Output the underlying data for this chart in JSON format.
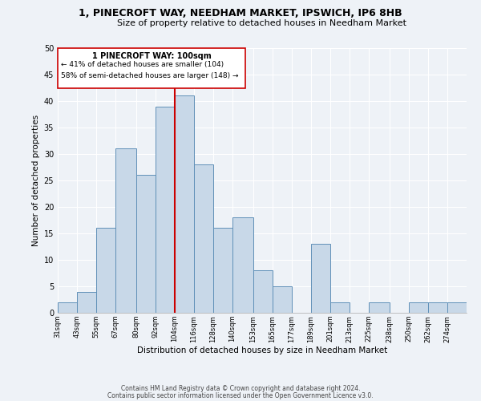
{
  "title1": "1, PINECROFT WAY, NEEDHAM MARKET, IPSWICH, IP6 8HB",
  "title2": "Size of property relative to detached houses in Needham Market",
  "xlabel": "Distribution of detached houses by size in Needham Market",
  "ylabel": "Number of detached properties",
  "bin_labels": [
    "31sqm",
    "43sqm",
    "55sqm",
    "67sqm",
    "80sqm",
    "92sqm",
    "104sqm",
    "116sqm",
    "128sqm",
    "140sqm",
    "153sqm",
    "165sqm",
    "177sqm",
    "189sqm",
    "201sqm",
    "213sqm",
    "225sqm",
    "238sqm",
    "250sqm",
    "262sqm",
    "274sqm"
  ],
  "bin_edges": [
    31,
    43,
    55,
    67,
    80,
    92,
    104,
    116,
    128,
    140,
    153,
    165,
    177,
    189,
    201,
    213,
    225,
    238,
    250,
    262,
    274
  ],
  "bar_heights": [
    2,
    4,
    16,
    31,
    26,
    39,
    41,
    28,
    16,
    18,
    8,
    5,
    0,
    13,
    2,
    0,
    2,
    0,
    2,
    2,
    2
  ],
  "bar_color": "#c8d8e8",
  "bar_edge_color": "#6090b8",
  "vline_x": 104,
  "vline_color": "#cc0000",
  "annotation_title": "1 PINECROFT WAY: 100sqm",
  "annotation_line1": "← 41% of detached houses are smaller (104)",
  "annotation_line2": "58% of semi-detached houses are larger (148) →",
  "box_edge_color": "#cc0000",
  "ylim": [
    0,
    50
  ],
  "yticks": [
    0,
    5,
    10,
    15,
    20,
    25,
    30,
    35,
    40,
    45,
    50
  ],
  "footer1": "Contains HM Land Registry data © Crown copyright and database right 2024.",
  "footer2": "Contains public sector information licensed under the Open Government Licence v3.0.",
  "bg_color": "#eef2f7"
}
